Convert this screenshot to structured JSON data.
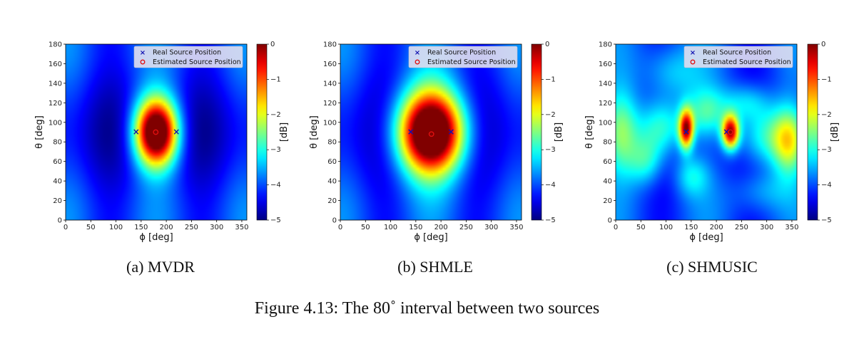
{
  "figure_caption": "Figure 4.13: The 80˚ interval between two sources",
  "chart_data": [
    {
      "type": "heatmap",
      "caption": "(a) MVDR",
      "xlabel": "ϕ [deg]",
      "ylabel": "θ [deg]",
      "colorbar_label": "[dB]",
      "xlim": [
        0,
        360
      ],
      "ylim": [
        0,
        180
      ],
      "xticks": [
        0,
        50,
        100,
        150,
        200,
        250,
        300,
        350
      ],
      "yticks": [
        0,
        20,
        40,
        60,
        80,
        100,
        120,
        140,
        160,
        180
      ],
      "clim": [
        -5,
        0
      ],
      "colorbar_ticks": [
        0,
        -1,
        -2,
        -3,
        -4,
        -5
      ],
      "colorbar_tick_labels": [
        "0",
        "−1",
        "−2",
        "−3",
        "−4",
        "−5"
      ],
      "colormap": "jet",
      "real_sources": [
        [
          140,
          90
        ],
        [
          220,
          90
        ]
      ],
      "estimated_sources": [
        [
          179,
          90
        ]
      ],
      "blobs": [
        {
          "phi": 180,
          "theta": 90,
          "s_phi": 30,
          "s_theta": 24,
          "amp": 5.4
        }
      ],
      "legend": {
        "position": "top-right",
        "entries": [
          "Real Source Position",
          "Estimated Source Position"
        ]
      },
      "legend_markers": {
        "real": "×",
        "estimated": "o"
      },
      "legend_colors": {
        "real": "#1010b0",
        "estimated": "#e01010"
      }
    },
    {
      "type": "heatmap",
      "caption": "(b) SHMLE",
      "xlabel": "ϕ [deg]",
      "ylabel": "θ [deg]",
      "colorbar_label": "[dB]",
      "xlim": [
        0,
        360
      ],
      "ylim": [
        0,
        180
      ],
      "xticks": [
        0,
        50,
        100,
        150,
        200,
        250,
        300,
        350
      ],
      "yticks": [
        0,
        20,
        40,
        60,
        80,
        100,
        120,
        140,
        160,
        180
      ],
      "clim": [
        -5,
        0
      ],
      "colorbar_ticks": [
        0,
        -1,
        -2,
        -3,
        -4,
        -5
      ],
      "colorbar_tick_labels": [
        "0",
        "−1",
        "−2",
        "−3",
        "−4",
        "−5"
      ],
      "colormap": "jet",
      "real_sources": [
        [
          140,
          90
        ],
        [
          220,
          90
        ]
      ],
      "estimated_sources": [
        [
          181,
          88
        ]
      ],
      "blobs": [
        {
          "phi": 180,
          "theta": 90,
          "s_phi": 48,
          "s_theta": 30,
          "amp": 5.8
        }
      ],
      "legend": {
        "position": "top-right",
        "entries": [
          "Real Source Position",
          "Estimated Source Position"
        ]
      },
      "legend_markers": {
        "real": "×",
        "estimated": "o"
      },
      "legend_colors": {
        "real": "#1010b0",
        "estimated": "#e01010"
      }
    },
    {
      "type": "heatmap",
      "caption": "(c) SHMUSIC",
      "xlabel": "ϕ [deg]",
      "ylabel": "θ [deg]",
      "colorbar_label": "[dB]",
      "xlim": [
        0,
        360
      ],
      "ylim": [
        0,
        180
      ],
      "xticks": [
        0,
        50,
        100,
        150,
        200,
        250,
        300,
        350
      ],
      "yticks": [
        0,
        20,
        40,
        60,
        80,
        100,
        120,
        140,
        160,
        180
      ],
      "clim": [
        -5,
        0
      ],
      "colorbar_ticks": [
        0,
        -1,
        -2,
        -3,
        -4,
        -5
      ],
      "colorbar_tick_labels": [
        "0",
        "−1",
        "−2",
        "−3",
        "−4",
        "−5"
      ],
      "colormap": "jet",
      "real_sources": [
        [
          140,
          90
        ],
        [
          220,
          90
        ]
      ],
      "estimated_sources": [
        [
          228,
          90
        ]
      ],
      "blobs": [
        {
          "phi": 140,
          "theta": 93,
          "s_phi": 10,
          "s_theta": 14,
          "amp": 3.6
        },
        {
          "phi": 228,
          "theta": 90,
          "s_phi": 12,
          "s_theta": 12,
          "amp": 3.8
        },
        {
          "phi": 90,
          "theta": 95,
          "s_phi": 35,
          "s_theta": 22,
          "amp": 1.9
        },
        {
          "phi": 10,
          "theta": 90,
          "s_phi": 25,
          "s_theta": 30,
          "amp": 1.7
        },
        {
          "phi": 300,
          "theta": 85,
          "s_phi": 45,
          "s_theta": 22,
          "amp": 1.8
        },
        {
          "phi": 345,
          "theta": 80,
          "s_phi": 22,
          "s_theta": 25,
          "amp": 1.6
        },
        {
          "phi": 180,
          "theta": 110,
          "s_phi": 30,
          "s_theta": 18,
          "amp": 1.3
        },
        {
          "phi": 60,
          "theta": 60,
          "s_phi": 25,
          "s_theta": 18,
          "amp": 1.3
        },
        {
          "phi": 260,
          "theta": 120,
          "s_phi": 35,
          "s_theta": 15,
          "amp": 1.2
        },
        {
          "phi": 150,
          "theta": 45,
          "s_phi": 25,
          "s_theta": 15,
          "amp": 1.0
        },
        {
          "phi": 110,
          "theta": 150,
          "s_phi": 40,
          "s_theta": 20,
          "amp": 0.9
        },
        {
          "phi": 290,
          "theta": 30,
          "s_phi": 40,
          "s_theta": 15,
          "amp": 0.7
        }
      ],
      "legend": {
        "position": "top-right",
        "entries": [
          "Real Source Position",
          "Estimated Source Position"
        ]
      },
      "legend_markers": {
        "real": "×",
        "estimated": "o"
      },
      "legend_colors": {
        "real": "#1010b0",
        "estimated": "#e01010"
      }
    }
  ]
}
